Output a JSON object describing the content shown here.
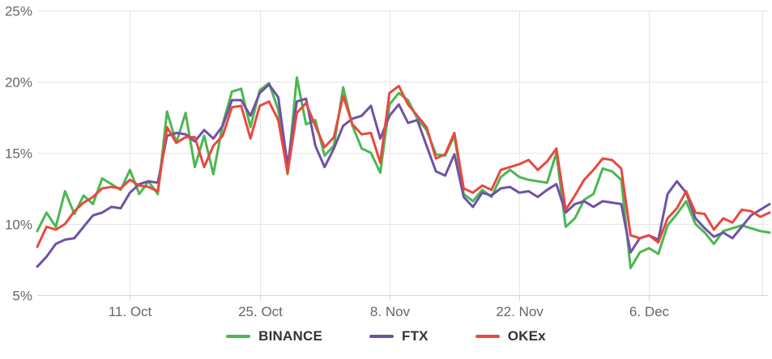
{
  "chart_data": {
    "type": "line",
    "title": "",
    "xlabel": "",
    "ylabel": "",
    "ylim": [
      5,
      25
    ],
    "ytick_step": 5,
    "ytick_labels": [
      "5%",
      "10%",
      "15%",
      "20%",
      "25%"
    ],
    "x_range_days": 79,
    "xticks": [
      {
        "label": "11. Oct",
        "day": 10
      },
      {
        "label": "25. Oct",
        "day": 24
      },
      {
        "label": "8. Nov",
        "day": 38
      },
      {
        "label": "22. Nov",
        "day": 52
      },
      {
        "label": "6. Dec",
        "day": 66
      }
    ],
    "grid": true,
    "legend_position": "bottom",
    "axis_line_color": "#ccd6eb",
    "grid_color": "#e6e6e6",
    "tick_label_color": "#666666",
    "legend_text_color": "#333333",
    "series": [
      {
        "name": "BINANCE",
        "color": "#4bb751",
        "values": [
          9.5,
          10.8,
          9.8,
          12.3,
          10.7,
          12.0,
          11.4,
          13.2,
          12.8,
          12.4,
          13.8,
          12.1,
          13.0,
          12.1,
          17.9,
          15.7,
          17.8,
          14.0,
          16.2,
          13.5,
          17.0,
          19.3,
          19.5,
          16.8,
          19.4,
          19.9,
          18.0,
          13.5,
          20.3,
          17.0,
          17.3,
          14.8,
          15.5,
          19.6,
          16.9,
          15.3,
          15.0,
          13.6,
          18.4,
          19.2,
          18.7,
          17.4,
          16.6,
          14.9,
          14.8,
          16.2,
          12.1,
          11.6,
          12.4,
          11.9,
          13.3,
          13.8,
          13.3,
          13.1,
          13.0,
          12.9,
          15.0,
          9.8,
          10.4,
          11.7,
          12.1,
          13.9,
          13.7,
          13.1,
          6.9,
          8.0,
          8.3,
          7.9,
          9.9,
          10.7,
          11.6,
          10.0,
          9.4,
          8.6,
          9.5,
          9.7,
          9.9,
          9.7,
          9.5,
          9.4
        ]
      },
      {
        "name": "FTX",
        "color": "#6f52a5",
        "values": [
          7.0,
          7.7,
          8.6,
          8.9,
          9.0,
          9.8,
          10.6,
          10.8,
          11.2,
          11.1,
          12.2,
          12.8,
          13.0,
          12.9,
          16.2,
          16.4,
          16.3,
          15.8,
          16.6,
          16.0,
          16.9,
          18.7,
          18.7,
          17.6,
          19.2,
          19.8,
          18.9,
          14.1,
          18.6,
          18.8,
          15.5,
          14.0,
          15.3,
          16.9,
          17.4,
          17.6,
          18.3,
          16.0,
          17.6,
          18.4,
          17.1,
          17.3,
          15.5,
          13.7,
          13.4,
          14.9,
          11.9,
          11.2,
          12.2,
          12.0,
          12.5,
          12.6,
          12.2,
          12.3,
          11.9,
          12.4,
          12.8,
          10.8,
          11.4,
          11.6,
          11.2,
          11.6,
          11.5,
          11.4,
          8.0,
          9.0,
          9.2,
          8.9,
          12.1,
          13.0,
          12.2,
          10.4,
          9.7,
          9.1,
          9.4,
          9.0,
          9.8,
          10.6,
          11.0,
          11.4
        ]
      },
      {
        "name": "OKEx",
        "color": "#e8493e",
        "values": [
          8.4,
          9.8,
          9.6,
          10.0,
          10.9,
          11.5,
          11.9,
          12.5,
          12.6,
          12.5,
          13.1,
          12.7,
          12.6,
          12.3,
          16.8,
          15.7,
          16.1,
          16.1,
          14.0,
          15.5,
          16.2,
          18.2,
          18.3,
          16.0,
          18.3,
          18.6,
          17.3,
          13.6,
          17.8,
          18.5,
          16.9,
          15.4,
          16.1,
          19.0,
          17.0,
          16.3,
          16.4,
          14.3,
          19.2,
          19.7,
          18.4,
          17.6,
          16.8,
          14.6,
          14.9,
          16.4,
          12.5,
          12.2,
          12.7,
          12.4,
          13.8,
          14.0,
          14.2,
          14.5,
          13.8,
          14.4,
          15.3,
          11.0,
          12.0,
          13.1,
          13.8,
          14.6,
          14.5,
          13.9,
          9.2,
          9.0,
          9.2,
          8.7,
          10.4,
          11.1,
          12.3,
          10.8,
          10.7,
          9.6,
          10.4,
          10.1,
          11.0,
          10.9,
          10.5,
          10.8
        ]
      }
    ]
  }
}
